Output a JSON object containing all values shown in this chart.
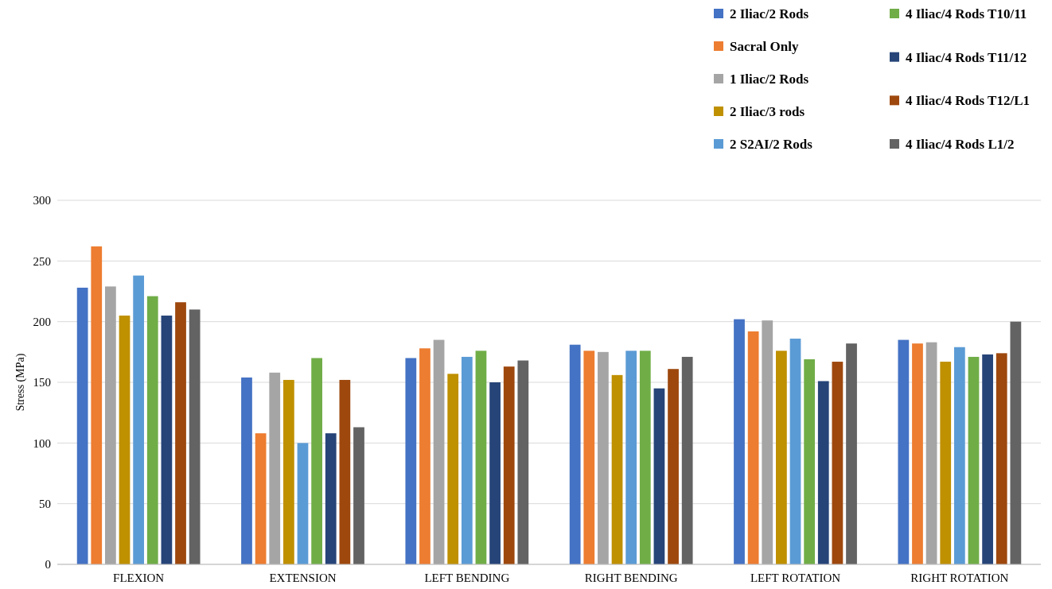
{
  "chart_data": {
    "type": "bar",
    "ylabel": "Stress (MPa)",
    "categories": [
      "FLEXION",
      "EXTENSION",
      "LEFT BENDING",
      "RIGHT BENDING",
      "LEFT ROTATION",
      "RIGHT ROTATION"
    ],
    "series": [
      {
        "name": "2 Iliac/2 Rods",
        "color": "#4472c4",
        "values": [
          228,
          154,
          170,
          181,
          202,
          185
        ]
      },
      {
        "name": "Sacral Only",
        "color": "#ed7d31",
        "values": [
          262,
          108,
          178,
          176,
          192,
          182
        ]
      },
      {
        "name": "1 Iliac/2 Rods",
        "color": "#a5a5a5",
        "values": [
          229,
          158,
          185,
          175,
          201,
          183
        ]
      },
      {
        "name": "2 Iliac/3 rods",
        "color": "#bf9000",
        "values": [
          205,
          152,
          157,
          156,
          176,
          167
        ]
      },
      {
        "name": "2 S2AI/2 Rods",
        "color": "#5b9bd5",
        "values": [
          238,
          100,
          171,
          176,
          186,
          179
        ]
      },
      {
        "name": "4 Iliac/4 Rods T10/11",
        "color": "#70ad47",
        "values": [
          221,
          170,
          176,
          176,
          169,
          171
        ]
      },
      {
        "name": "4 Iliac/4 Rods T11/12",
        "color": "#264478",
        "values": [
          205,
          108,
          150,
          145,
          151,
          173
        ]
      },
      {
        "name": "4 Iliac/4 Rods T12/L1",
        "color": "#9e480e",
        "values": [
          216,
          152,
          163,
          161,
          167,
          174
        ]
      },
      {
        "name": "4 Iliac/4 Rods L1/2",
        "color": "#636363",
        "values": [
          210,
          113,
          168,
          171,
          182,
          200
        ]
      }
    ],
    "ylim": [
      0,
      300
    ],
    "yticks": [
      0,
      50,
      100,
      150,
      200,
      250,
      300
    ],
    "grid": "y",
    "legend": "top right"
  }
}
